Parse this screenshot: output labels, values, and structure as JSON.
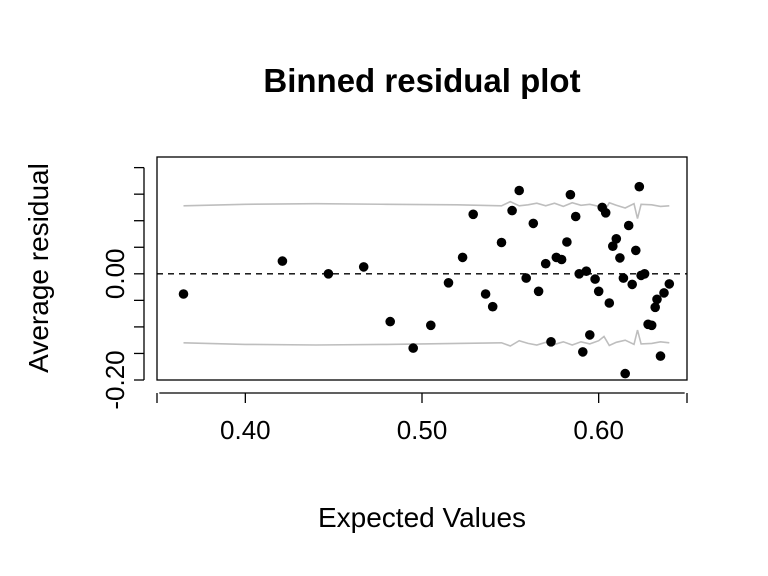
{
  "chart_data": {
    "type": "scatter",
    "title": "Binned residual plot",
    "xlabel": "Expected Values",
    "ylabel": "Average residual",
    "xlim": [
      0.35,
      0.65
    ],
    "ylim": [
      -0.2,
      0.22
    ],
    "x_ticks": [
      0.4,
      0.5,
      0.6
    ],
    "x_tick_labels": [
      "0.40",
      "0.50",
      "0.60"
    ],
    "y_ticks": [
      -0.2,
      -0.1,
      0.0,
      0.1,
      0.2
    ],
    "y_tick_labels": [
      "-0.20",
      "",
      "0.00",
      "",
      ""
    ],
    "y_minor_ticks": [
      -0.2,
      -0.15,
      -0.1,
      -0.05,
      0.0,
      0.05,
      0.1,
      0.15,
      0.2
    ],
    "grid": false,
    "reference_line": {
      "y": 0,
      "style": "dashed",
      "color": "#000000"
    },
    "colors": {
      "points": "#000000",
      "envelope": "#bebebe"
    },
    "points": [
      {
        "x": 0.365,
        "y": -0.038
      },
      {
        "x": 0.421,
        "y": 0.024
      },
      {
        "x": 0.447,
        "y": 0.0
      },
      {
        "x": 0.467,
        "y": 0.013
      },
      {
        "x": 0.482,
        "y": -0.09
      },
      {
        "x": 0.495,
        "y": -0.14
      },
      {
        "x": 0.505,
        "y": -0.097
      },
      {
        "x": 0.515,
        "y": -0.017
      },
      {
        "x": 0.523,
        "y": 0.031
      },
      {
        "x": 0.529,
        "y": 0.112
      },
      {
        "x": 0.536,
        "y": -0.038
      },
      {
        "x": 0.54,
        "y": -0.062
      },
      {
        "x": 0.545,
        "y": 0.059
      },
      {
        "x": 0.551,
        "y": 0.119
      },
      {
        "x": 0.555,
        "y": 0.157
      },
      {
        "x": 0.559,
        "y": -0.008
      },
      {
        "x": 0.563,
        "y": 0.095
      },
      {
        "x": 0.566,
        "y": -0.033
      },
      {
        "x": 0.57,
        "y": 0.019
      },
      {
        "x": 0.573,
        "y": -0.128
      },
      {
        "x": 0.576,
        "y": 0.031
      },
      {
        "x": 0.579,
        "y": 0.027
      },
      {
        "x": 0.582,
        "y": 0.06
      },
      {
        "x": 0.584,
        "y": 0.149
      },
      {
        "x": 0.587,
        "y": 0.108
      },
      {
        "x": 0.589,
        "y": 0.0
      },
      {
        "x": 0.591,
        "y": -0.147
      },
      {
        "x": 0.593,
        "y": 0.005
      },
      {
        "x": 0.595,
        "y": -0.115
      },
      {
        "x": 0.598,
        "y": -0.01
      },
      {
        "x": 0.6,
        "y": -0.033
      },
      {
        "x": 0.602,
        "y": 0.125
      },
      {
        "x": 0.604,
        "y": 0.115
      },
      {
        "x": 0.606,
        "y": -0.055
      },
      {
        "x": 0.608,
        "y": 0.052
      },
      {
        "x": 0.61,
        "y": 0.066
      },
      {
        "x": 0.612,
        "y": 0.03
      },
      {
        "x": 0.614,
        "y": -0.008
      },
      {
        "x": 0.615,
        "y": -0.188
      },
      {
        "x": 0.617,
        "y": 0.091
      },
      {
        "x": 0.619,
        "y": -0.02
      },
      {
        "x": 0.621,
        "y": 0.044
      },
      {
        "x": 0.623,
        "y": 0.164
      },
      {
        "x": 0.624,
        "y": -0.003
      },
      {
        "x": 0.626,
        "y": 0.0
      },
      {
        "x": 0.628,
        "y": -0.095
      },
      {
        "x": 0.63,
        "y": -0.097
      },
      {
        "x": 0.632,
        "y": -0.063
      },
      {
        "x": 0.633,
        "y": -0.048
      },
      {
        "x": 0.635,
        "y": -0.155
      },
      {
        "x": 0.637,
        "y": -0.036
      },
      {
        "x": 0.64,
        "y": -0.019
      }
    ],
    "envelope_upper": {
      "x": [
        0.365,
        0.4,
        0.44,
        0.48,
        0.52,
        0.545,
        0.55,
        0.555,
        0.56,
        0.565,
        0.57,
        0.575,
        0.58,
        0.585,
        0.59,
        0.595,
        0.6,
        0.603,
        0.606,
        0.61,
        0.615,
        0.62,
        0.622,
        0.624,
        0.63,
        0.635,
        0.64
      ],
      "y": [
        0.128,
        0.131,
        0.132,
        0.131,
        0.13,
        0.128,
        0.136,
        0.128,
        0.13,
        0.133,
        0.128,
        0.133,
        0.127,
        0.134,
        0.129,
        0.131,
        0.127,
        0.116,
        0.134,
        0.129,
        0.124,
        0.132,
        0.104,
        0.131,
        0.13,
        0.127,
        0.128
      ]
    },
    "envelope_lower": {
      "x": [
        0.365,
        0.4,
        0.44,
        0.48,
        0.52,
        0.545,
        0.55,
        0.555,
        0.56,
        0.565,
        0.57,
        0.575,
        0.58,
        0.585,
        0.59,
        0.595,
        0.6,
        0.603,
        0.606,
        0.61,
        0.615,
        0.62,
        0.622,
        0.624,
        0.63,
        0.635,
        0.64
      ],
      "y": [
        -0.13,
        -0.133,
        -0.134,
        -0.133,
        -0.131,
        -0.13,
        -0.136,
        -0.126,
        -0.131,
        -0.134,
        -0.129,
        -0.133,
        -0.128,
        -0.134,
        -0.128,
        -0.132,
        -0.126,
        -0.118,
        -0.135,
        -0.129,
        -0.125,
        -0.133,
        -0.106,
        -0.132,
        -0.131,
        -0.128,
        -0.13
      ]
    }
  }
}
